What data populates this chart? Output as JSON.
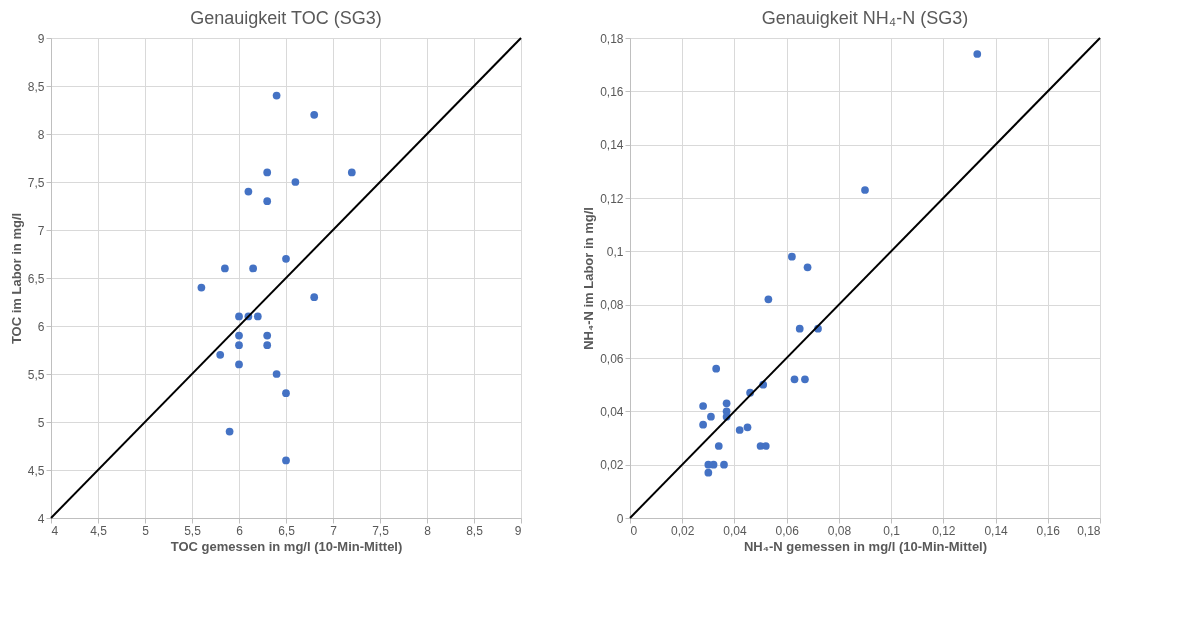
{
  "chart_data": [
    {
      "type": "scatter",
      "title": "Genauigkeit TOC (SG3)",
      "xlabel": "TOC gemessen in mg/l (10-Min-Mittel)",
      "ylabel": "TOC im Labor in mg/l",
      "xlim": [
        4,
        9
      ],
      "ylim": [
        4,
        9
      ],
      "xticks": [
        4,
        {
          "value": 4.5,
          "label": "4,5"
        },
        5,
        {
          "value": 5.5,
          "label": "5,5"
        },
        6,
        {
          "value": 6.5,
          "label": "6,5"
        },
        7,
        {
          "value": 7.5,
          "label": "7,5"
        },
        8,
        {
          "value": 8.5,
          "label": "8,5"
        },
        9
      ],
      "yticks": [
        4,
        {
          "value": 4.5,
          "label": "4,5"
        },
        5,
        {
          "value": 5.5,
          "label": "5,5"
        },
        6,
        {
          "value": 6.5,
          "label": "6,5"
        },
        7,
        {
          "value": 7.5,
          "label": "7,5"
        },
        8,
        {
          "value": 8.5,
          "label": "8,5"
        },
        9
      ],
      "grid": true,
      "series": [
        {
          "marker": "circle",
          "color": "#4472c4",
          "x": [
            6.4,
            6.8,
            6.3,
            6.6,
            7.2,
            6.1,
            6.3,
            6.5,
            5.85,
            6.15,
            5.6,
            6.8,
            6.0,
            6.1,
            6.2,
            6.0,
            6.0,
            6.3,
            6.3,
            5.8,
            6.0,
            6.4,
            6.5,
            5.9,
            6.5
          ],
          "values": [
            8.4,
            8.2,
            7.6,
            7.5,
            7.6,
            7.4,
            7.3,
            6.7,
            6.6,
            6.6,
            6.4,
            6.3,
            6.1,
            6.1,
            6.1,
            5.9,
            5.8,
            5.9,
            5.8,
            5.7,
            5.6,
            5.5,
            5.3,
            4.9,
            4.6
          ]
        },
        {
          "type": "line",
          "marker": "none",
          "color": "#000000",
          "x": [
            4,
            9
          ],
          "values": [
            4,
            9
          ]
        }
      ]
    },
    {
      "type": "scatter",
      "title": "Genauigkeit NH₄-N (SG3)",
      "xlabel": "NH₄-N gemessen in mg/l (10-Min-Mittel)",
      "ylabel": "NH₄-N im Labor in mg/l",
      "xlim": [
        0,
        0.18
      ],
      "ylim": [
        0,
        0.18
      ],
      "xticks": [
        0,
        {
          "value": 0.02,
          "label": "0,02"
        },
        {
          "value": 0.04,
          "label": "0,04"
        },
        {
          "value": 0.06,
          "label": "0,06"
        },
        {
          "value": 0.08,
          "label": "0,08"
        },
        {
          "value": 0.1,
          "label": "0,1"
        },
        {
          "value": 0.12,
          "label": "0,12"
        },
        {
          "value": 0.14,
          "label": "0,14"
        },
        {
          "value": 0.16,
          "label": "0,16"
        },
        {
          "value": 0.18,
          "label": "0,18"
        }
      ],
      "yticks": [
        0,
        {
          "value": 0.02,
          "label": "0,02"
        },
        {
          "value": 0.04,
          "label": "0,04"
        },
        {
          "value": 0.06,
          "label": "0,06"
        },
        {
          "value": 0.08,
          "label": "0,08"
        },
        {
          "value": 0.1,
          "label": "0,1"
        },
        {
          "value": 0.12,
          "label": "0,12"
        },
        {
          "value": 0.14,
          "label": "0,14"
        },
        {
          "value": 0.16,
          "label": "0,16"
        },
        {
          "value": 0.18,
          "label": "0,18"
        }
      ],
      "grid": true,
      "series": [
        {
          "marker": "circle",
          "color": "#4472c4",
          "x": [
            0.133,
            0.09,
            0.062,
            0.068,
            0.053,
            0.065,
            0.072,
            0.033,
            0.063,
            0.067,
            0.051,
            0.046,
            0.028,
            0.037,
            0.037,
            0.037,
            0.031,
            0.028,
            0.045,
            0.042,
            0.034,
            0.05,
            0.052,
            0.03,
            0.032,
            0.036,
            0.03
          ],
          "values": [
            0.174,
            0.123,
            0.098,
            0.094,
            0.082,
            0.071,
            0.071,
            0.056,
            0.052,
            0.052,
            0.05,
            0.047,
            0.042,
            0.043,
            0.04,
            0.038,
            0.038,
            0.035,
            0.034,
            0.033,
            0.027,
            0.027,
            0.027,
            0.02,
            0.02,
            0.02,
            0.017
          ]
        },
        {
          "type": "line",
          "marker": "none",
          "color": "#000000",
          "x": [
            0,
            0.18
          ],
          "values": [
            0,
            0.18
          ]
        }
      ]
    }
  ]
}
